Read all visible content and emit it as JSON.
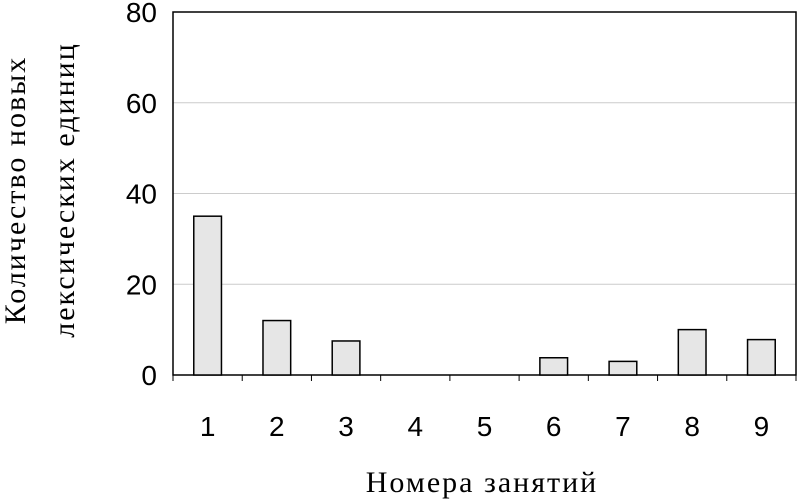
{
  "chart_data": {
    "type": "bar",
    "title": "",
    "xlabel": "Номера занятий",
    "ylabel_lines": [
      "Количество новых",
      "лексических единиц"
    ],
    "categories": [
      "1",
      "2",
      "3",
      "4",
      "5",
      "6",
      "7",
      "8",
      "9"
    ],
    "values": [
      35,
      12,
      7.5,
      0,
      0,
      3.8,
      3,
      10,
      7.8
    ],
    "ylim": [
      0,
      80
    ],
    "yticks": [
      "0",
      "20",
      "40",
      "60",
      "80"
    ],
    "grid": true,
    "legend": "none",
    "colors": {
      "bar_fill": "#e6e6e6",
      "bar_stroke": "#000000",
      "grid": "#cccccc"
    }
  }
}
